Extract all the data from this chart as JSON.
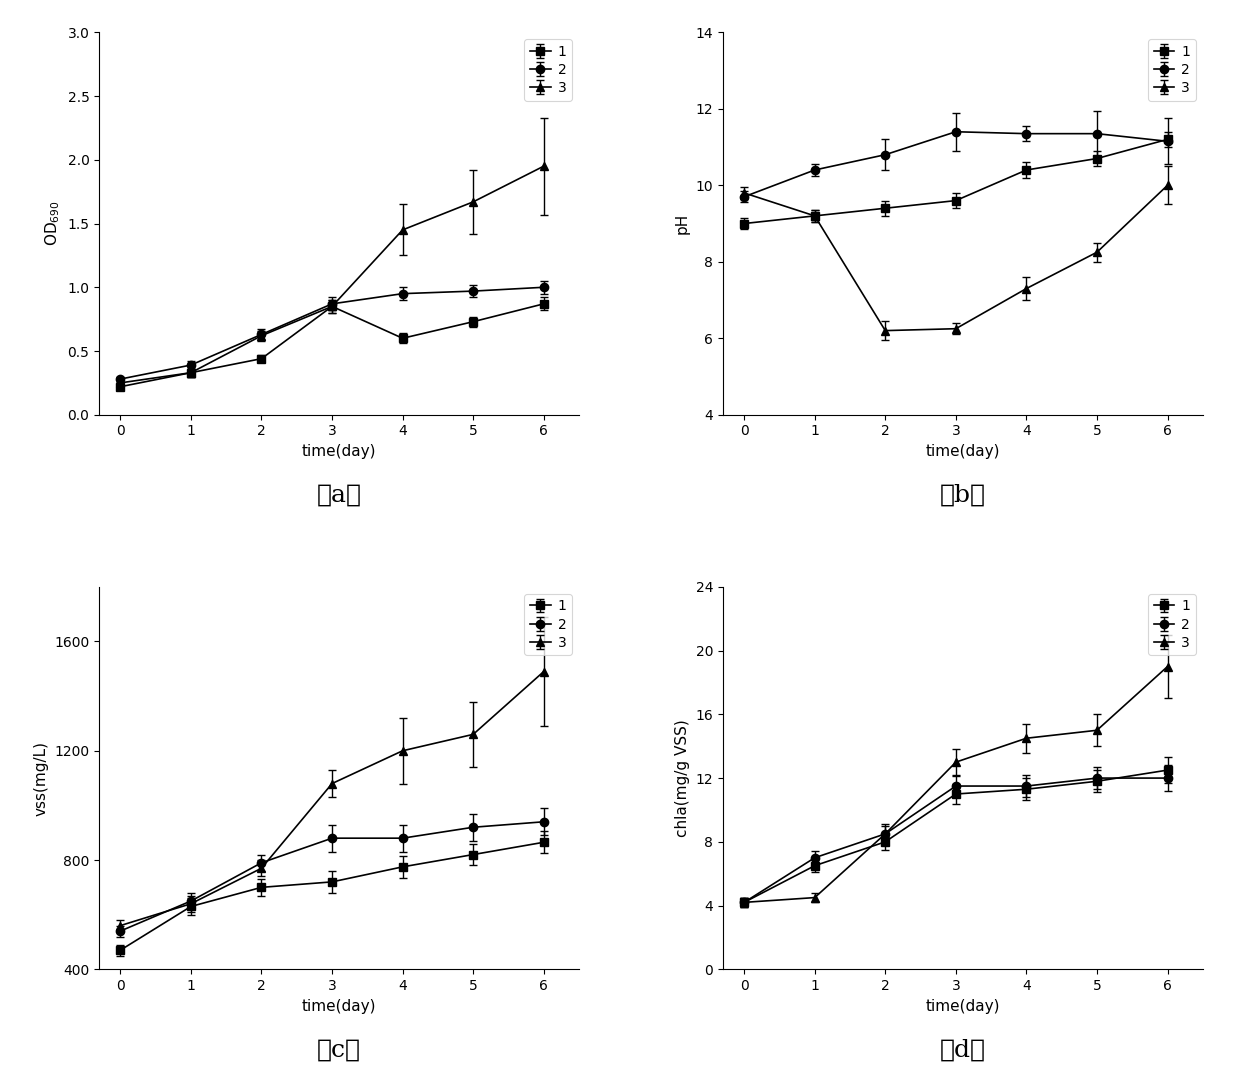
{
  "panel_a": {
    "title": "（a）",
    "ylabel": "OD$_{690}$",
    "xlabel": "time(day)",
    "ylim": [
      0.0,
      3.0
    ],
    "yticks": [
      0.0,
      0.5,
      1.0,
      1.5,
      2.0,
      2.5,
      3.0
    ],
    "xlim": [
      -0.3,
      6.5
    ],
    "series": [
      {
        "label": "1",
        "x": [
          0,
          1,
          2,
          3,
          4,
          5,
          6
        ],
        "y": [
          0.22,
          0.33,
          0.44,
          0.85,
          0.6,
          0.73,
          0.87
        ],
        "yerr": [
          0.02,
          0.03,
          0.03,
          0.05,
          0.04,
          0.04,
          0.05
        ],
        "marker": "s"
      },
      {
        "label": "2",
        "x": [
          0,
          1,
          2,
          3,
          4,
          5,
          6
        ],
        "y": [
          0.28,
          0.39,
          0.63,
          0.87,
          0.95,
          0.97,
          1.0
        ],
        "yerr": [
          0.02,
          0.03,
          0.04,
          0.05,
          0.05,
          0.05,
          0.05
        ],
        "marker": "o"
      },
      {
        "label": "3",
        "x": [
          0,
          1,
          2,
          3,
          4,
          5,
          6
        ],
        "y": [
          0.25,
          0.33,
          0.62,
          0.85,
          1.45,
          1.67,
          1.95
        ],
        "yerr": [
          0.02,
          0.03,
          0.04,
          0.05,
          0.2,
          0.25,
          0.38
        ],
        "marker": "^"
      }
    ]
  },
  "panel_b": {
    "title": "（b）",
    "ylabel": "pH",
    "xlabel": "time(day)",
    "ylim": [
      4,
      14
    ],
    "yticks": [
      4,
      6,
      8,
      10,
      12,
      14
    ],
    "xlim": [
      -0.3,
      6.5
    ],
    "series": [
      {
        "label": "1",
        "x": [
          0,
          1,
          2,
          3,
          4,
          5,
          6
        ],
        "y": [
          9.0,
          9.2,
          9.4,
          9.6,
          10.4,
          10.7,
          11.2
        ],
        "yerr": [
          0.15,
          0.15,
          0.2,
          0.2,
          0.2,
          0.2,
          0.2
        ],
        "marker": "s"
      },
      {
        "label": "2",
        "x": [
          0,
          1,
          2,
          3,
          4,
          5,
          6
        ],
        "y": [
          9.7,
          10.4,
          10.8,
          11.4,
          11.35,
          11.35,
          11.15
        ],
        "yerr": [
          0.15,
          0.15,
          0.4,
          0.5,
          0.2,
          0.6,
          0.6
        ],
        "marker": "o"
      },
      {
        "label": "3",
        "x": [
          0,
          1,
          2,
          3,
          4,
          5,
          6
        ],
        "y": [
          9.8,
          9.2,
          6.2,
          6.25,
          7.3,
          8.25,
          10.0
        ],
        "yerr": [
          0.15,
          0.15,
          0.25,
          0.15,
          0.3,
          0.25,
          0.5
        ],
        "marker": "^"
      }
    ]
  },
  "panel_c": {
    "title": "（c）",
    "ylabel": "vss(mg/L)",
    "xlabel": "time(day)",
    "ylim": [
      400,
      1800
    ],
    "yticks": [
      400,
      800,
      1200,
      1600
    ],
    "xlim": [
      -0.3,
      6.5
    ],
    "series": [
      {
        "label": "1",
        "x": [
          0,
          1,
          2,
          3,
          4,
          5,
          6
        ],
        "y": [
          470,
          630,
          700,
          720,
          775,
          820,
          865
        ],
        "yerr": [
          20,
          30,
          30,
          40,
          40,
          40,
          40
        ],
        "marker": "s"
      },
      {
        "label": "2",
        "x": [
          0,
          1,
          2,
          3,
          4,
          5,
          6
        ],
        "y": [
          540,
          650,
          790,
          880,
          880,
          920,
          940
        ],
        "yerr": [
          20,
          30,
          30,
          50,
          50,
          50,
          50
        ],
        "marker": "o"
      },
      {
        "label": "3",
        "x": [
          0,
          1,
          2,
          3,
          4,
          5,
          6
        ],
        "y": [
          560,
          640,
          770,
          1080,
          1200,
          1260,
          1490
        ],
        "yerr": [
          20,
          30,
          30,
          50,
          120,
          120,
          200
        ],
        "marker": "^"
      }
    ]
  },
  "panel_d": {
    "title": "（d）",
    "ylabel": "chla(mg/g VSS)",
    "xlabel": "time(day)",
    "ylim": [
      0,
      24
    ],
    "yticks": [
      0,
      4,
      8,
      12,
      16,
      20,
      24
    ],
    "xlim": [
      -0.3,
      6.5
    ],
    "series": [
      {
        "label": "1",
        "x": [
          0,
          1,
          2,
          3,
          4,
          5,
          6
        ],
        "y": [
          4.2,
          6.5,
          8.0,
          11.0,
          11.3,
          11.8,
          12.5
        ],
        "yerr": [
          0.3,
          0.4,
          0.5,
          0.6,
          0.7,
          0.7,
          0.8
        ],
        "marker": "s"
      },
      {
        "label": "2",
        "x": [
          0,
          1,
          2,
          3,
          4,
          5,
          6
        ],
        "y": [
          4.2,
          7.0,
          8.5,
          11.5,
          11.5,
          12.0,
          12.0
        ],
        "yerr": [
          0.3,
          0.4,
          0.5,
          0.6,
          0.7,
          0.7,
          0.8
        ],
        "marker": "o"
      },
      {
        "label": "3",
        "x": [
          0,
          1,
          2,
          3,
          4,
          5,
          6
        ],
        "y": [
          4.2,
          4.5,
          8.5,
          13.0,
          14.5,
          15.0,
          19.0
        ],
        "yerr": [
          0.3,
          0.3,
          0.6,
          0.8,
          0.9,
          1.0,
          2.0
        ],
        "marker": "^"
      }
    ]
  },
  "line_color": "#000000",
  "marker_size": 6,
  "line_width": 1.2,
  "capsize": 3,
  "elinewidth": 1.0,
  "legend_fontsize": 10,
  "tick_fontsize": 10,
  "label_fontsize": 11,
  "subtitle_fontsize": 18
}
